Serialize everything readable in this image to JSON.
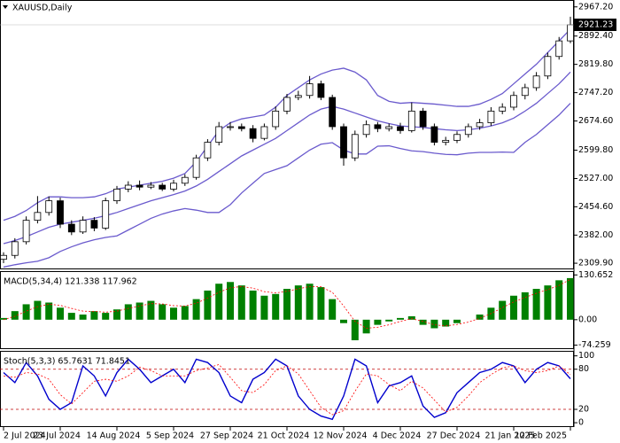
{
  "chart_data": [
    {
      "type": "candlestick",
      "title": "XAUUSD,Daily",
      "open": [
        2320,
        2330,
        2365,
        2420,
        2440,
        2470,
        2410,
        2390,
        2420,
        2400,
        2470,
        2500,
        2510,
        2505,
        2510,
        2500,
        2515,
        2530,
        2580,
        2620,
        2660,
        2660,
        2655,
        2630,
        2660,
        2700,
        2735,
        2740,
        2770,
        2735,
        2660,
        2580,
        2640,
        2665,
        2655,
        2660,
        2650,
        2700,
        2660,
        2620,
        2625,
        2640,
        2660,
        2670,
        2700,
        2710,
        2740,
        2760,
        2790,
        2840,
        2880
      ],
      "high": [
        2338,
        2374,
        2430,
        2482,
        2481,
        2478,
        2420,
        2430,
        2428,
        2478,
        2508,
        2520,
        2522,
        2518,
        2516,
        2524,
        2538,
        2588,
        2628,
        2672,
        2672,
        2668,
        2664,
        2668,
        2712,
        2744,
        2752,
        2790,
        2778,
        2742,
        2668,
        2650,
        2676,
        2672,
        2668,
        2670,
        2722,
        2708,
        2668,
        2634,
        2648,
        2668,
        2680,
        2710,
        2720,
        2750,
        2770,
        2800,
        2850,
        2890,
        2942
      ],
      "low": [
        2310,
        2322,
        2358,
        2412,
        2432,
        2400,
        2382,
        2385,
        2392,
        2395,
        2462,
        2492,
        2497,
        2500,
        2495,
        2494,
        2508,
        2524,
        2572,
        2612,
        2650,
        2648,
        2620,
        2625,
        2652,
        2692,
        2728,
        2732,
        2728,
        2652,
        2560,
        2572,
        2632,
        2646,
        2648,
        2642,
        2645,
        2652,
        2612,
        2612,
        2618,
        2632,
        2652,
        2662,
        2692,
        2702,
        2730,
        2752,
        2782,
        2832,
        2874
      ],
      "close": [
        2330,
        2365,
        2420,
        2440,
        2470,
        2410,
        2390,
        2420,
        2400,
        2470,
        2500,
        2510,
        2505,
        2510,
        2500,
        2515,
        2530,
        2580,
        2620,
        2660,
        2660,
        2655,
        2630,
        2660,
        2700,
        2735,
        2740,
        2770,
        2735,
        2660,
        2580,
        2640,
        2665,
        2655,
        2660,
        2650,
        2700,
        2660,
        2620,
        2625,
        2640,
        2660,
        2670,
        2700,
        2710,
        2740,
        2760,
        2790,
        2840,
        2880,
        2921.23
      ],
      "bands": [
        {
          "color": "#6a5acd",
          "values": [
            2420,
            2430,
            2445,
            2465,
            2480,
            2480,
            2478,
            2478,
            2480,
            2488,
            2500,
            2505,
            2510,
            2515,
            2520,
            2528,
            2540,
            2570,
            2610,
            2650,
            2670,
            2680,
            2685,
            2690,
            2710,
            2740,
            2760,
            2780,
            2795,
            2805,
            2810,
            2800,
            2780,
            2740,
            2725,
            2720,
            2722,
            2720,
            2718,
            2715,
            2712,
            2712,
            2718,
            2730,
            2745,
            2770,
            2795,
            2820,
            2850,
            2880,
            2910
          ]
        },
        {
          "color": "#6a5acd",
          "values": [
            2360,
            2368,
            2378,
            2390,
            2402,
            2410,
            2415,
            2420,
            2425,
            2432,
            2440,
            2450,
            2460,
            2470,
            2478,
            2486,
            2495,
            2508,
            2525,
            2545,
            2565,
            2585,
            2600,
            2615,
            2630,
            2650,
            2670,
            2690,
            2705,
            2712,
            2705,
            2695,
            2685,
            2675,
            2668,
            2662,
            2660,
            2658,
            2655,
            2652,
            2650,
            2652,
            2656,
            2662,
            2670,
            2682,
            2700,
            2720,
            2745,
            2770,
            2800
          ]
        },
        {
          "color": "#6a5acd",
          "values": [
            2300,
            2306,
            2311,
            2315,
            2324,
            2340,
            2352,
            2362,
            2370,
            2376,
            2380,
            2395,
            2410,
            2425,
            2436,
            2444,
            2450,
            2446,
            2440,
            2440,
            2460,
            2490,
            2515,
            2540,
            2550,
            2560,
            2580,
            2600,
            2615,
            2619,
            2600,
            2590,
            2590,
            2610,
            2611,
            2604,
            2598,
            2596,
            2592,
            2589,
            2588,
            2592,
            2594,
            2594,
            2595,
            2594,
            2620,
            2640,
            2665,
            2690,
            2720
          ]
        }
      ],
      "price_label": "2921.23",
      "ylim": [
        2301,
        2978
      ],
      "yticks": [
        {
          "value": 2309.9,
          "label": "2309.90"
        },
        {
          "value": 2382,
          "label": "2382.00"
        },
        {
          "value": 2454.6,
          "label": "2454.60"
        },
        {
          "value": 2527,
          "label": "2527.00"
        },
        {
          "value": 2599.8,
          "label": "2599.80"
        },
        {
          "value": 2674.6,
          "label": "2674.60"
        },
        {
          "value": 2747.2,
          "label": "2747.20"
        },
        {
          "value": 2819.8,
          "label": "2819.80"
        },
        {
          "value": 2892.4,
          "label": "2892.40"
        },
        {
          "value": 2967.2,
          "label": "2967.20"
        }
      ],
      "xticks": [
        {
          "value": 0,
          "label": "2 Jul 2024"
        },
        {
          "value": 5,
          "label": "23 Jul 2024"
        },
        {
          "value": 10,
          "label": "14 Aug 2024"
        },
        {
          "value": 15,
          "label": "5 Sep 2024"
        },
        {
          "value": 20,
          "label": "27 Sep 2024"
        },
        {
          "value": 25,
          "label": "21 Oct 2024"
        },
        {
          "value": 30,
          "label": "12 Nov 2024"
        },
        {
          "value": 35,
          "label": "4 Dec 2024"
        },
        {
          "value": 40,
          "label": "27 Dec 2024"
        },
        {
          "value": 45,
          "label": "21 Jan 2025"
        },
        {
          "value": 50,
          "label": "12 Feb 2025"
        }
      ]
    },
    {
      "type": "macd",
      "title": "MACD(5,34,4) 121.338 117.962",
      "series": [
        {
          "style": "histogram",
          "color": "#008000",
          "values": [
            5,
            25,
            45,
            55,
            50,
            35,
            20,
            15,
            25,
            20,
            30,
            45,
            50,
            55,
            45,
            35,
            40,
            60,
            85,
            105,
            110,
            100,
            85,
            70,
            75,
            90,
            100,
            105,
            95,
            60,
            -10,
            -60,
            -40,
            -15,
            -5,
            5,
            10,
            -15,
            -25,
            -20,
            -10,
            0,
            15,
            35,
            55,
            70,
            80,
            90,
            100,
            115,
            121.338
          ]
        },
        {
          "style": "dotted",
          "color": "#ff0000",
          "values": [
            0,
            10,
            25,
            38,
            45,
            42,
            33,
            25,
            24,
            22,
            25,
            33,
            40,
            47,
            46,
            41,
            40,
            48,
            63,
            80,
            93,
            97,
            92,
            82,
            78,
            83,
            90,
            97,
            96,
            80,
            40,
            -5,
            -25,
            -22,
            -15,
            -5,
            3,
            -5,
            -15,
            -18,
            -14,
            -7,
            4,
            18,
            35,
            52,
            65,
            77,
            88,
            100,
            117.962
          ]
        }
      ],
      "ylim": [
        -78,
        134
      ],
      "yticks": [
        130.652,
        {
          "value": 0,
          "label": "0.00"
        },
        -74.259
      ]
    },
    {
      "type": "line",
      "title": "Stoch(5,3,3) 65.7631 71.8451",
      "series": [
        {
          "style": "solid",
          "color": "#0000cd",
          "values": [
            75,
            60,
            90,
            70,
            35,
            20,
            30,
            85,
            70,
            40,
            75,
            95,
            80,
            60,
            70,
            80,
            60,
            95,
            90,
            75,
            40,
            30,
            65,
            75,
            95,
            85,
            40,
            20,
            10,
            5,
            40,
            95,
            85,
            30,
            55,
            60,
            70,
            25,
            8,
            15,
            45,
            60,
            75,
            80,
            90,
            85,
            60,
            80,
            90,
            85,
            65.7631
          ]
        },
        {
          "style": "dotted",
          "color": "#ff0000",
          "values": [
            70,
            68,
            75,
            73,
            65,
            42,
            28,
            45,
            62,
            65,
            62,
            70,
            83,
            78,
            70,
            70,
            70,
            78,
            82,
            87,
            68,
            48,
            45,
            57,
            78,
            85,
            73,
            48,
            23,
            12,
            18,
            47,
            73,
            70,
            57,
            48,
            62,
            52,
            34,
            16,
            23,
            40,
            60,
            72,
            82,
            85,
            78,
            75,
            78,
            85,
            71.8451
          ]
        }
      ],
      "levels": [
        20,
        80
      ],
      "level_color": "#c00000",
      "ylim": [
        -2.5,
        103.5
      ],
      "yticks": [
        0,
        20,
        80,
        100
      ]
    }
  ]
}
